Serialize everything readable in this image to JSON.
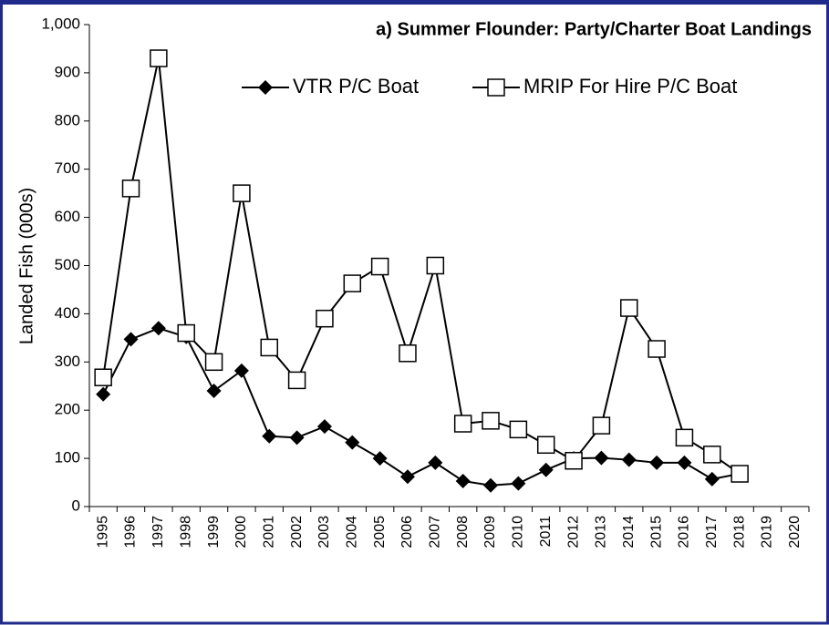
{
  "chart_data": {
    "type": "line",
    "title": "a) Summer Flounder: Party/Charter Boat Landings",
    "y_label": "Landed  Fish (000s)",
    "categories": [
      "1995",
      "1996",
      "1997",
      "1998",
      "1999",
      "2000",
      "2001",
      "2002",
      "2003",
      "2004",
      "2005",
      "2006",
      "2007",
      "2008",
      "2009",
      "2010",
      "2011",
      "2012",
      "2013",
      "2014",
      "2015",
      "2016",
      "2017",
      "2018",
      "2019",
      "2020"
    ],
    "series": [
      {
        "name": "VTR P/C Boat",
        "color": "#000000",
        "marker": "diamond",
        "values": [
          233,
          347,
          370,
          352,
          240,
          282,
          146,
          143,
          166,
          133,
          100,
          62,
          91,
          53,
          44,
          48,
          76,
          100,
          101,
          97,
          91,
          91,
          57,
          68,
          null,
          null
        ]
      },
      {
        "name": "MRIP For Hire P/C Boat",
        "color": "#000000",
        "marker": "square",
        "values": [
          268,
          660,
          930,
          360,
          300,
          650,
          330,
          262,
          390,
          463,
          498,
          318,
          500,
          172,
          178,
          160,
          128,
          95,
          168,
          412,
          327,
          143,
          108,
          68,
          null,
          null
        ]
      }
    ],
    "ylim": [
      0,
      1000
    ],
    "yticks": [
      0,
      100,
      200,
      300,
      400,
      500,
      600,
      700,
      800,
      900,
      {
        "value": 1000,
        "label": "1,000"
      }
    ],
    "grid": false,
    "legend": "top"
  }
}
